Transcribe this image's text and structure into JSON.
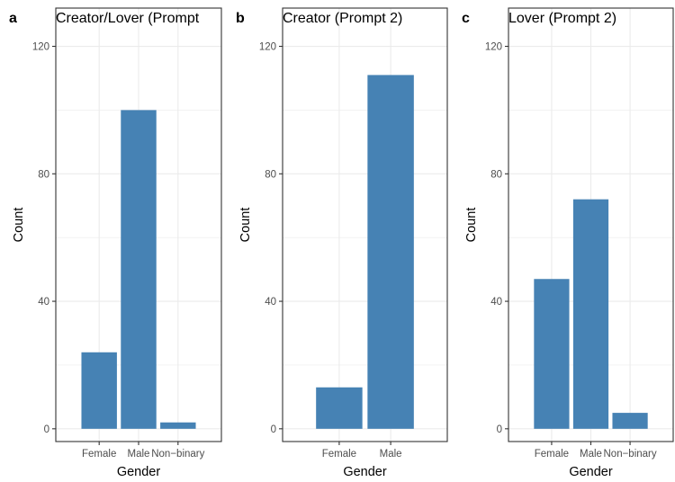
{
  "colors": {
    "bar": "#4682B4",
    "grid": "#EBEBEB",
    "panel_border": "#333333",
    "text": "#000000",
    "tick_text": "#4D4D4D"
  },
  "chart_data": [
    {
      "type": "bar",
      "tag": "a",
      "title": "Creator/Lover (Prompt",
      "xlabel": "Gender",
      "ylabel": "Count",
      "categories": [
        "Female",
        "Male",
        "Non−binary"
      ],
      "values": [
        24,
        100,
        2
      ],
      "ylim": [
        -4,
        132
      ],
      "yticks": [
        0,
        40,
        80,
        120
      ],
      "grid": true
    },
    {
      "type": "bar",
      "tag": "b",
      "title": "Creator (Prompt 2)",
      "xlabel": "Gender",
      "ylabel": "Count",
      "categories": [
        "Female",
        "Male"
      ],
      "values": [
        13,
        111
      ],
      "ylim": [
        -4,
        132
      ],
      "yticks": [
        0,
        40,
        80,
        120
      ],
      "grid": true
    },
    {
      "type": "bar",
      "tag": "c",
      "title": "Lover (Prompt 2)",
      "xlabel": "Gender",
      "ylabel": "Count",
      "categories": [
        "Female",
        "Male",
        "Non−binary"
      ],
      "values": [
        47,
        72,
        5
      ],
      "ylim": [
        -4,
        132
      ],
      "yticks": [
        0,
        40,
        80,
        120
      ],
      "grid": true
    }
  ]
}
